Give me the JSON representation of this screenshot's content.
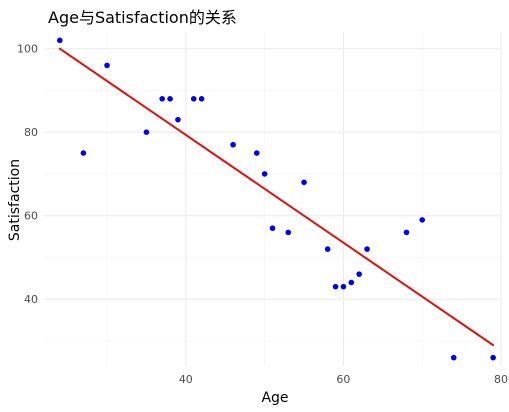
{
  "chart_data": {
    "type": "scatter",
    "title": "Age与Satisfaction的关系",
    "xlabel": "Age",
    "ylabel": "Satisfaction",
    "xlim": [
      22,
      80
    ],
    "ylim": [
      24,
      104
    ],
    "xticks": [
      40,
      60,
      80
    ],
    "yticks": [
      40,
      60,
      80,
      100
    ],
    "xminor": [
      30,
      50,
      70
    ],
    "yminor": [
      30,
      50,
      70,
      90
    ],
    "grid": true,
    "legend": "none",
    "colors": {
      "points": "#0000ee",
      "fit_line": "#dd1111"
    },
    "points": [
      {
        "x": 24,
        "y": 102
      },
      {
        "x": 27,
        "y": 75
      },
      {
        "x": 30,
        "y": 96
      },
      {
        "x": 35,
        "y": 80
      },
      {
        "x": 37,
        "y": 88
      },
      {
        "x": 38,
        "y": 88
      },
      {
        "x": 39,
        "y": 83
      },
      {
        "x": 41,
        "y": 88
      },
      {
        "x": 42,
        "y": 88
      },
      {
        "x": 46,
        "y": 77
      },
      {
        "x": 49,
        "y": 75
      },
      {
        "x": 50,
        "y": 70
      },
      {
        "x": 51,
        "y": 57
      },
      {
        "x": 53,
        "y": 56
      },
      {
        "x": 55,
        "y": 68
      },
      {
        "x": 58,
        "y": 52
      },
      {
        "x": 59,
        "y": 43
      },
      {
        "x": 60,
        "y": 43
      },
      {
        "x": 61,
        "y": 44
      },
      {
        "x": 62,
        "y": 46
      },
      {
        "x": 63,
        "y": 52
      },
      {
        "x": 68,
        "y": 56
      },
      {
        "x": 70,
        "y": 59
      },
      {
        "x": 74,
        "y": 26
      },
      {
        "x": 79,
        "y": 26
      }
    ],
    "fit_line": {
      "x": [
        24,
        79
      ],
      "y": [
        100,
        29
      ]
    }
  }
}
